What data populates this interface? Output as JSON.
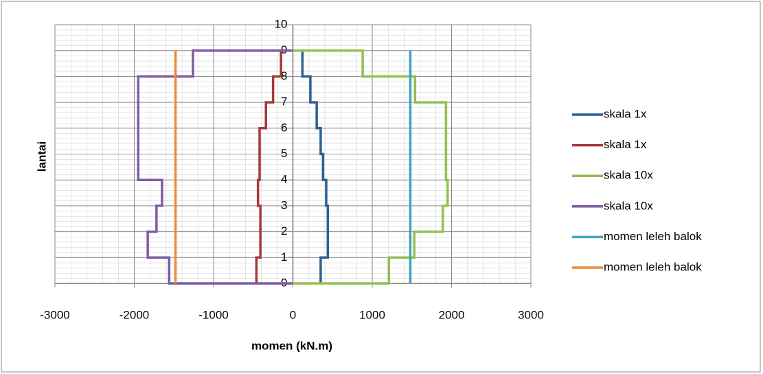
{
  "chart_data": {
    "type": "line",
    "xlabel": "momen (kN.m)",
    "ylabel": "lantai",
    "xlim": [
      -3000,
      3000
    ],
    "xticks": [
      -3000,
      -2000,
      -1000,
      0,
      1000,
      2000,
      3000
    ],
    "ylim": [
      0,
      10
    ],
    "yticks": [
      0,
      1,
      2,
      3,
      4,
      5,
      6,
      7,
      8,
      9,
      10
    ],
    "grid": true,
    "legend": "right",
    "series": [
      {
        "name": "skala 1x",
        "color": "#2e5f95",
        "x": [
          350,
          350,
          440,
          440,
          420,
          420,
          380,
          380,
          350,
          350,
          300,
          300,
          220,
          220,
          120,
          120
        ],
        "values": [
          0,
          1,
          1,
          3,
          3,
          4,
          4,
          5,
          5,
          6,
          6,
          7,
          7,
          8,
          8,
          9
        ]
      },
      {
        "name": "skala 1x",
        "color": "#a43a36",
        "x": [
          -460,
          -460,
          -410,
          -410,
          -440,
          -440,
          -420,
          -420,
          -420,
          -420,
          -340,
          -340,
          -250,
          -250,
          -150,
          -150
        ],
        "values": [
          0,
          1,
          1,
          3,
          3,
          4,
          4,
          5,
          5,
          6,
          6,
          7,
          7,
          8,
          8,
          9
        ]
      },
      {
        "name": "skala 10x",
        "color": "#93bf51",
        "x": [
          0,
          1210,
          1210,
          1530,
          1530,
          1890,
          1890,
          1950,
          1950,
          1930,
          1930,
          1540,
          1540,
          880,
          880,
          0
        ],
        "values": [
          0,
          0,
          1,
          1,
          2,
          2,
          3,
          3,
          4,
          4,
          7,
          7,
          8,
          8,
          9,
          9
        ]
      },
      {
        "name": "skala 10x",
        "color": "#7e5ba3",
        "x": [
          0,
          -1560,
          -1560,
          -1830,
          -1830,
          -1720,
          -1720,
          -1650,
          -1650,
          -1950,
          -1950,
          -1260,
          -1260,
          0
        ],
        "values": [
          0,
          0,
          1,
          1,
          2,
          2,
          3,
          3,
          4,
          4,
          8,
          8,
          9,
          9
        ]
      },
      {
        "name": "momen leleh balok",
        "color": "#3fa3c2",
        "x": [
          1480,
          1480
        ],
        "values": [
          0,
          9
        ]
      },
      {
        "name": "momen leleh balok",
        "color": "#ee8b35",
        "x": [
          -1480,
          -1480
        ],
        "values": [
          0,
          9
        ]
      }
    ]
  }
}
